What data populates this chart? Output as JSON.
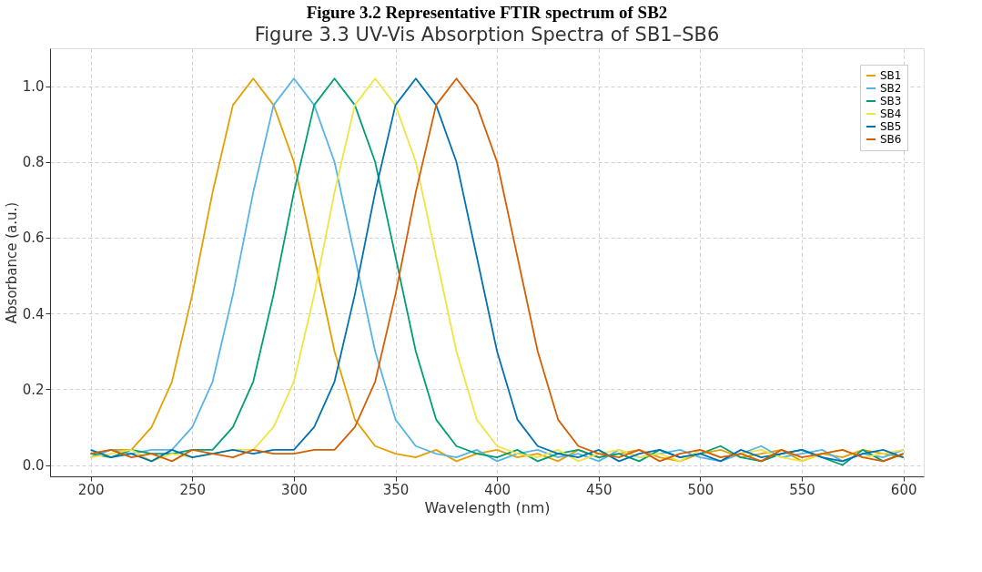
{
  "chart_data": {
    "type": "line",
    "title": "Figure 3.2 Representative FTIR spectrum of SB2",
    "subtitle": "Figure 3.3 UV-Vis Absorption Spectra of SB1–SB6",
    "xlabel": "Wavelength (nm)",
    "ylabel": "Absorbance (a.u.)",
    "x": [
      200,
      210,
      220,
      230,
      240,
      250,
      260,
      270,
      280,
      290,
      300,
      310,
      320,
      330,
      340,
      350,
      360,
      370,
      380,
      390,
      400,
      410,
      420,
      430,
      440,
      450,
      460,
      470,
      480,
      490,
      500,
      510,
      520,
      530,
      540,
      550,
      560,
      570,
      580,
      590,
      600
    ],
    "series": [
      {
        "name": "SB1",
        "color": "#e69f00",
        "values": [
          0.03,
          0.04,
          0.04,
          0.1,
          0.22,
          0.45,
          0.72,
          0.95,
          1.02,
          0.95,
          0.8,
          0.55,
          0.3,
          0.12,
          0.05,
          0.03,
          0.02,
          0.04,
          0.01,
          0.03,
          0.04,
          0.02,
          0.03,
          0.01,
          0.04,
          0.02,
          0.03,
          0.04,
          0.02,
          0.01,
          0.03,
          0.04,
          0.02,
          0.03,
          0.04,
          0.01,
          0.03,
          0.02,
          0.04,
          0.03,
          0.02
        ]
      },
      {
        "name": "SB2",
        "color": "#56b4e9",
        "values": [
          0.02,
          0.04,
          0.03,
          0.04,
          0.04,
          0.1,
          0.22,
          0.45,
          0.72,
          0.95,
          1.02,
          0.95,
          0.8,
          0.55,
          0.3,
          0.12,
          0.05,
          0.03,
          0.02,
          0.04,
          0.01,
          0.03,
          0.04,
          0.02,
          0.03,
          0.01,
          0.04,
          0.02,
          0.03,
          0.04,
          0.02,
          0.01,
          0.03,
          0.05,
          0.02,
          0.03,
          0.04,
          0.01,
          0.03,
          0.02,
          0.04
        ]
      },
      {
        "name": "SB3",
        "color": "#009e73",
        "values": [
          0.03,
          0.02,
          0.04,
          0.03,
          0.03,
          0.04,
          0.04,
          0.1,
          0.22,
          0.45,
          0.72,
          0.95,
          1.02,
          0.95,
          0.8,
          0.55,
          0.3,
          0.12,
          0.05,
          0.03,
          0.02,
          0.04,
          0.01,
          0.03,
          0.04,
          0.02,
          0.03,
          0.01,
          0.04,
          0.02,
          0.03,
          0.05,
          0.02,
          0.01,
          0.03,
          0.04,
          0.02,
          0.0,
          0.04,
          0.01,
          0.03
        ]
      },
      {
        "name": "SB4",
        "color": "#f0e442",
        "values": [
          0.02,
          0.03,
          0.04,
          0.01,
          0.03,
          0.02,
          0.03,
          0.04,
          0.04,
          0.1,
          0.22,
          0.45,
          0.72,
          0.95,
          1.02,
          0.95,
          0.8,
          0.55,
          0.3,
          0.12,
          0.05,
          0.03,
          0.02,
          0.04,
          0.01,
          0.03,
          0.04,
          0.02,
          0.03,
          0.01,
          0.04,
          0.02,
          0.03,
          0.04,
          0.02,
          0.01,
          0.03,
          0.04,
          0.02,
          0.03,
          0.04
        ]
      },
      {
        "name": "SB5",
        "color": "#0072b2",
        "values": [
          0.04,
          0.02,
          0.03,
          0.01,
          0.04,
          0.02,
          0.03,
          0.04,
          0.03,
          0.04,
          0.04,
          0.1,
          0.22,
          0.45,
          0.72,
          0.95,
          1.02,
          0.95,
          0.8,
          0.55,
          0.3,
          0.12,
          0.05,
          0.03,
          0.02,
          0.04,
          0.01,
          0.03,
          0.04,
          0.02,
          0.03,
          0.01,
          0.04,
          0.02,
          0.03,
          0.04,
          0.02,
          0.01,
          0.03,
          0.04,
          0.02
        ]
      },
      {
        "name": "SB6",
        "color": "#d55e00",
        "values": [
          0.03,
          0.04,
          0.02,
          0.03,
          0.01,
          0.04,
          0.03,
          0.02,
          0.04,
          0.03,
          0.03,
          0.04,
          0.04,
          0.1,
          0.22,
          0.45,
          0.72,
          0.95,
          1.02,
          0.95,
          0.8,
          0.55,
          0.3,
          0.12,
          0.05,
          0.03,
          0.02,
          0.04,
          0.01,
          0.03,
          0.04,
          0.02,
          0.03,
          0.01,
          0.04,
          0.02,
          0.03,
          0.04,
          0.02,
          0.01,
          0.03
        ]
      }
    ],
    "xlim": [
      180,
      610
    ],
    "xticks": [
      200,
      250,
      300,
      350,
      400,
      450,
      500,
      550,
      600
    ],
    "ylim": [
      -0.03,
      1.1
    ],
    "yticks": [
      {
        "value": 0,
        "label": "0.0"
      },
      {
        "value": 0.2,
        "label": "0.2"
      },
      {
        "value": 0.4,
        "label": "0.4"
      },
      {
        "value": 0.6,
        "label": "0.6"
      },
      {
        "value": 0.8,
        "label": "0.8"
      },
      {
        "value": 1,
        "label": "1.0"
      }
    ],
    "grid": true,
    "legend": "top right",
    "line_style": "solid",
    "marker": "none"
  }
}
